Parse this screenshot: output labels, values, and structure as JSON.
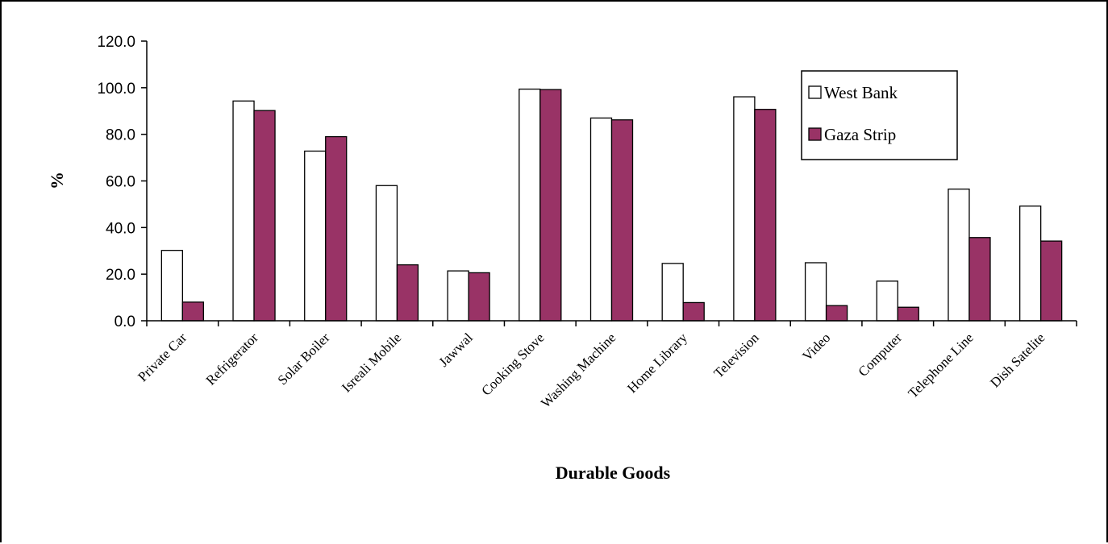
{
  "chart_data": {
    "type": "bar",
    "title": "",
    "xlabel": "Durable Goods",
    "ylabel": "%",
    "ylim": [
      0,
      120
    ],
    "yticks": [
      "0.0",
      "20.0",
      "40.0",
      "60.0",
      "80.0",
      "100.0",
      "120.0"
    ],
    "grid": false,
    "legend_position": "top-right",
    "categories": [
      "Private Car",
      "Refrigerator",
      "Solar Boiler",
      "Isreali Mobile",
      "Jawwal",
      "Cooking Stove",
      "Washing Machine",
      "Home Library",
      "Television",
      "Video",
      "Computer",
      "Telephone Line",
      "Dish Satelite"
    ],
    "series": [
      {
        "name": "West Bank",
        "color": "#ffffff",
        "values": [
          30.2,
          94.3,
          72.8,
          58.0,
          21.4,
          99.4,
          87.0,
          24.6,
          96.1,
          24.9,
          17.0,
          56.5,
          49.2
        ]
      },
      {
        "name": "Gaza Strip",
        "color": "#993366",
        "values": [
          8.0,
          90.2,
          79.0,
          24.0,
          20.6,
          99.2,
          86.2,
          7.8,
          90.7,
          6.5,
          5.8,
          35.7,
          34.2
        ]
      }
    ]
  }
}
